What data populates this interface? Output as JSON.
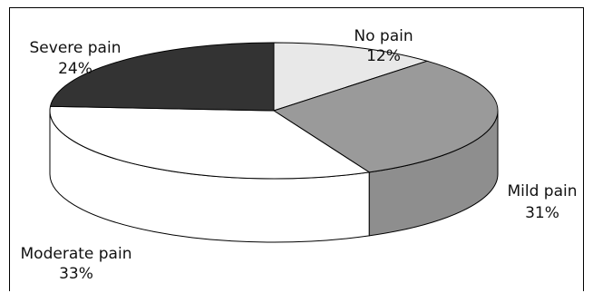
{
  "chart_data": {
    "type": "pie",
    "three_d": true,
    "slices": [
      {
        "label": "No pain",
        "value": 12,
        "value_text": "12%",
        "color": "#e8e8e8"
      },
      {
        "label": "Mild pain",
        "value": 31,
        "value_text": "31%",
        "color": "#9a9a9a"
      },
      {
        "label": "Moderate pain",
        "value": 33,
        "value_text": "33%",
        "color": "#ffffff"
      },
      {
        "label": "Severe pain",
        "value": 24,
        "value_text": "24%",
        "color": "#333333"
      }
    ],
    "title": "",
    "legend": "none"
  }
}
